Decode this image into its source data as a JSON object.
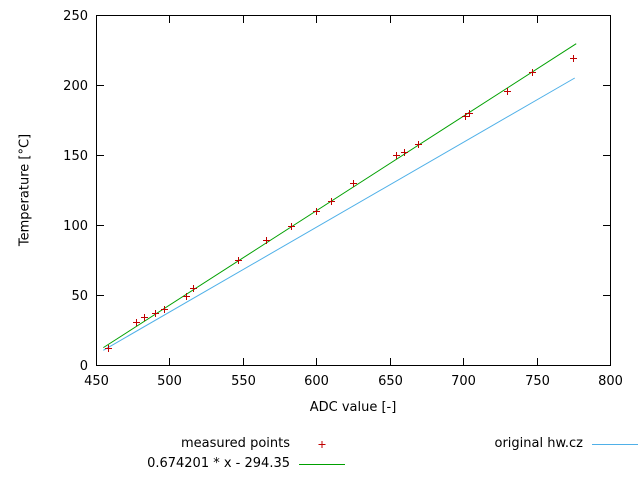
{
  "window": {
    "background": "#ffffff"
  },
  "chart_data": {
    "type": "scatter",
    "title": "",
    "xlabel": "ADC value [-]",
    "ylabel": "Temperature [°C]",
    "xlim": [
      450,
      800
    ],
    "ylim": [
      0,
      250
    ],
    "xticks": [
      450,
      500,
      550,
      600,
      650,
      700,
      750,
      800
    ],
    "yticks": [
      0,
      50,
      100,
      150,
      200,
      250
    ],
    "grid": false,
    "legend_position": "below-plot",
    "series": [
      {
        "name": "measured points",
        "type": "points",
        "marker": "plus",
        "color": "#c00000",
        "points": [
          [
            458,
            12
          ],
          [
            477,
            31
          ],
          [
            483,
            34
          ],
          [
            490,
            37
          ],
          [
            496,
            40
          ],
          [
            511,
            49
          ],
          [
            516,
            55
          ],
          [
            547,
            75
          ],
          [
            566,
            89
          ],
          [
            583,
            99
          ],
          [
            600,
            110
          ],
          [
            610,
            117
          ],
          [
            625,
            130
          ],
          [
            654,
            150
          ],
          [
            660,
            152
          ],
          [
            669,
            158
          ],
          [
            701,
            178
          ],
          [
            704,
            180
          ],
          [
            730,
            196
          ],
          [
            747,
            209
          ],
          [
            775,
            219
          ]
        ]
      },
      {
        "name": "0.674201 * x - 294.35",
        "type": "line",
        "color": "#00a000",
        "points": [
          [
            455,
            12.4
          ],
          [
            777,
            229.5
          ]
        ]
      },
      {
        "name": "original hw.cz",
        "type": "line",
        "color": "#4fb0e8",
        "points": [
          [
            455,
            10.5
          ],
          [
            776,
            205
          ]
        ]
      }
    ]
  }
}
